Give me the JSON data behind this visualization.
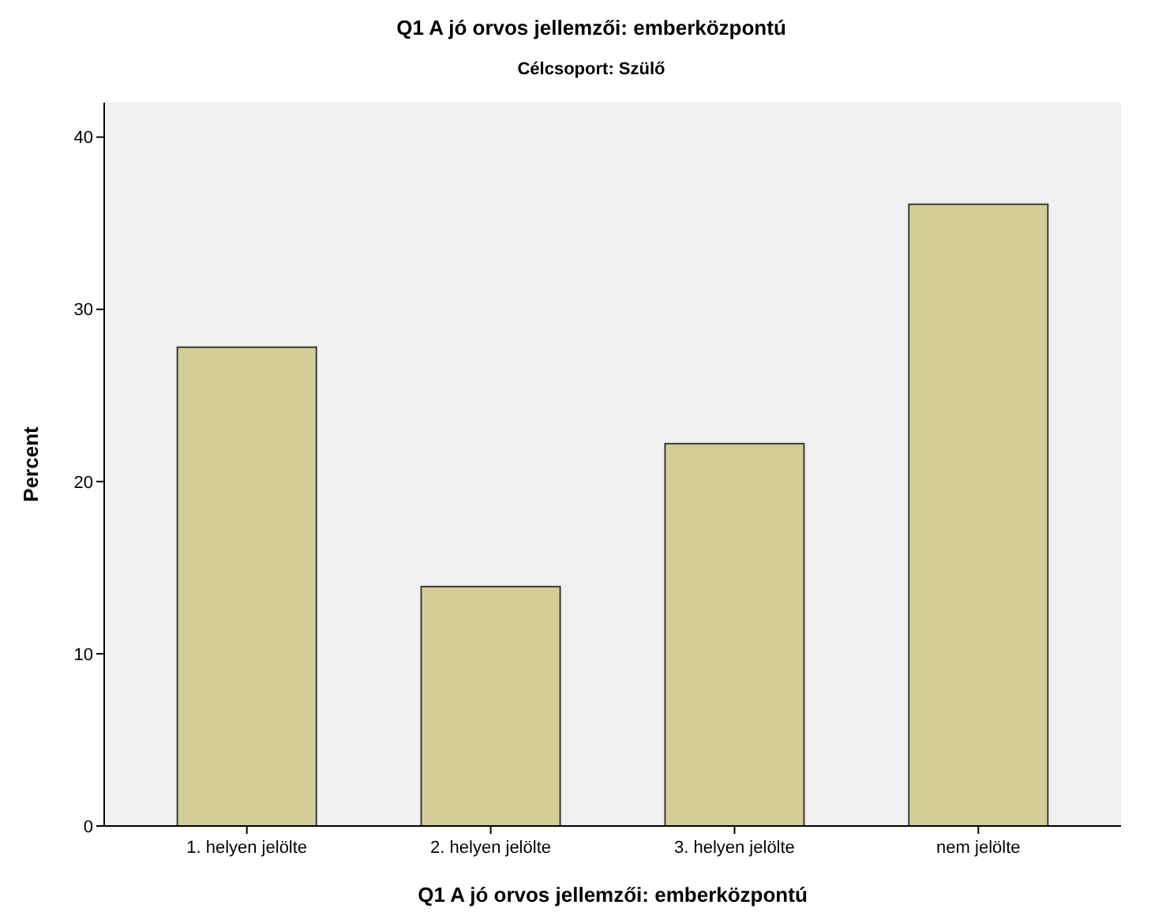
{
  "chart_data": {
    "type": "bar",
    "title": "Q1 A jó orvos jellemzői: emberközpontú",
    "subtitle": "Célcsoport: Szülő",
    "xlabel": "Q1 A jó orvos jellemzői: emberközpontú",
    "ylabel": "Percent",
    "categories": [
      "1. helyen jelölte",
      "2. helyen jelölte",
      "3. helyen jelölte",
      "nem jelölte"
    ],
    "values": [
      27.8,
      13.9,
      22.2,
      36.1
    ],
    "color": "#d3ce97",
    "ylim": [
      0,
      42
    ],
    "yticks": [
      0,
      10,
      20,
      30,
      40
    ],
    "grid": false
  }
}
